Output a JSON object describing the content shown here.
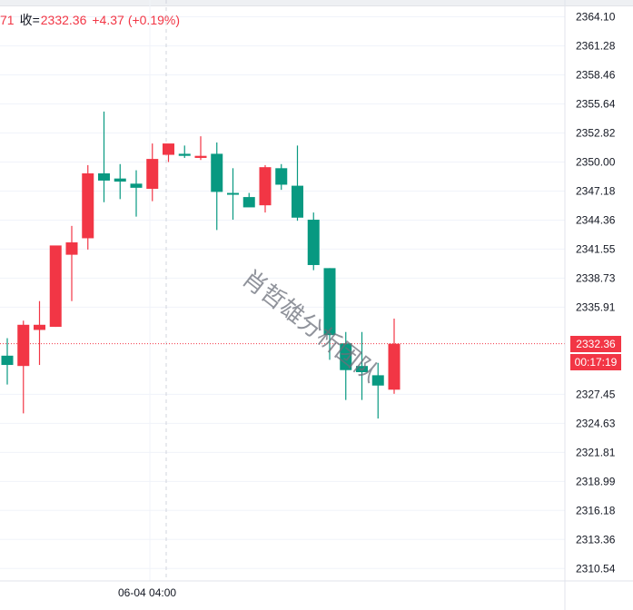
{
  "header": {
    "prev_value_fragment": "71",
    "close_label": "收=",
    "close_value": "2332.36",
    "change": "+4.37",
    "change_pct": "(+0.19%)"
  },
  "price_axis": {
    "ticks": [
      "2364.10",
      "2361.28",
      "2358.46",
      "2355.64",
      "2352.82",
      "2350.00",
      "2347.18",
      "2344.36",
      "2341.55",
      "2338.73",
      "2335.91",
      "2332.36",
      "2327.45",
      "2324.63",
      "2321.81",
      "2318.99",
      "2316.18",
      "2313.36",
      "2310.54"
    ],
    "current_price": "2332.36",
    "countdown": "00:17:19"
  },
  "time_axis": {
    "label": "06-04 04:00"
  },
  "watermark": "肖哲雄分析团队",
  "colors": {
    "up": "#f23645",
    "down": "#089981",
    "grid": "#f0f3fa",
    "axis_border": "#e0e3eb"
  },
  "chart_data": {
    "type": "candlestick",
    "ylim": [
      2309.0,
      2365.5
    ],
    "candles": [
      {
        "o": 2331.2,
        "h": 2332.9,
        "l": 2328.4,
        "c": 2330.3
      },
      {
        "o": 2330.2,
        "h": 2334.6,
        "l": 2325.6,
        "c": 2334.2
      },
      {
        "o": 2333.7,
        "h": 2336.5,
        "l": 2330.3,
        "c": 2334.2
      },
      {
        "o": 2334.0,
        "h": 2341.7,
        "l": 2334.0,
        "c": 2341.9
      },
      {
        "o": 2341.0,
        "h": 2343.8,
        "l": 2336.5,
        "c": 2342.2
      },
      {
        "o": 2342.6,
        "h": 2349.7,
        "l": 2341.5,
        "c": 2348.9
      },
      {
        "o": 2348.9,
        "h": 2354.9,
        "l": 2346.1,
        "c": 2348.2
      },
      {
        "o": 2348.4,
        "h": 2349.8,
        "l": 2346.4,
        "c": 2348.1
      },
      {
        "o": 2347.9,
        "h": 2349.2,
        "l": 2344.7,
        "c": 2347.5
      },
      {
        "o": 2347.4,
        "h": 2351.8,
        "l": 2346.2,
        "c": 2350.3
      },
      {
        "o": 2350.7,
        "h": 2351.5,
        "l": 2350.0,
        "c": 2351.8
      },
      {
        "o": 2350.8,
        "h": 2351.6,
        "l": 2350.4,
        "c": 2350.6
      },
      {
        "o": 2350.4,
        "h": 2352.5,
        "l": 2350.2,
        "c": 2350.6
      },
      {
        "o": 2350.8,
        "h": 2351.9,
        "l": 2343.4,
        "c": 2347.1
      },
      {
        "o": 2347.0,
        "h": 2349.4,
        "l": 2344.4,
        "c": 2346.9
      },
      {
        "o": 2346.6,
        "h": 2347.0,
        "l": 2345.7,
        "c": 2345.6
      },
      {
        "o": 2345.8,
        "h": 2349.7,
        "l": 2345.1,
        "c": 2349.5
      },
      {
        "o": 2349.4,
        "h": 2349.8,
        "l": 2347.3,
        "c": 2347.8
      },
      {
        "o": 2347.7,
        "h": 2351.6,
        "l": 2344.3,
        "c": 2344.6
      },
      {
        "o": 2344.4,
        "h": 2345.1,
        "l": 2339.5,
        "c": 2340.0
      },
      {
        "o": 2339.7,
        "h": 2339.7,
        "l": 2330.8,
        "c": 2333.2
      },
      {
        "o": 2332.4,
        "h": 2333.5,
        "l": 2326.9,
        "c": 2329.8
      },
      {
        "o": 2330.2,
        "h": 2333.5,
        "l": 2326.9,
        "c": 2329.6
      },
      {
        "o": 2329.3,
        "h": 2330.5,
        "l": 2325.1,
        "c": 2328.3
      },
      {
        "o": 2327.9,
        "h": 2334.8,
        "l": 2327.5,
        "c": 2332.36
      }
    ]
  }
}
